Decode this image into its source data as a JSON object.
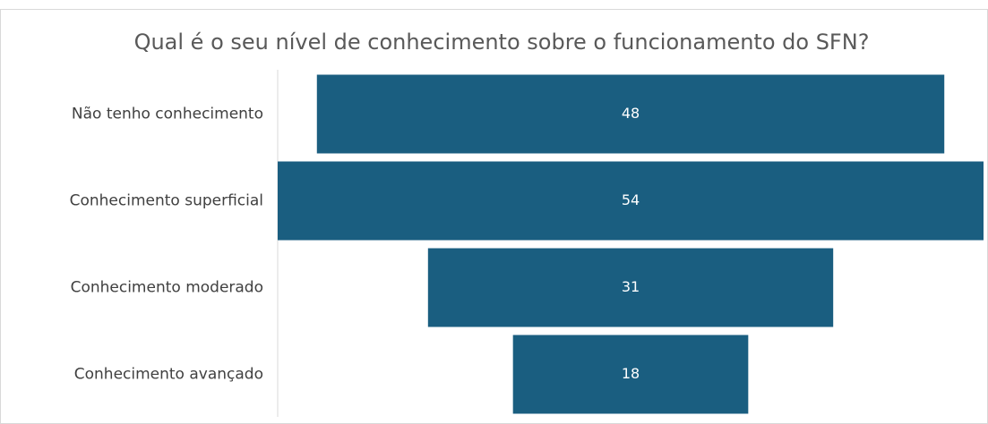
{
  "chart_data": {
    "type": "funnel",
    "title": "Qual é o seu nível de conhecimento sobre o funcionamento do SFN?",
    "categories": [
      "Não tenho conhecimento",
      "Conhecimento superficial",
      "Conhecimento moderado",
      "Conhecimento avançado"
    ],
    "values": [
      48,
      54,
      31,
      18
    ],
    "color": "#1a5e80"
  }
}
